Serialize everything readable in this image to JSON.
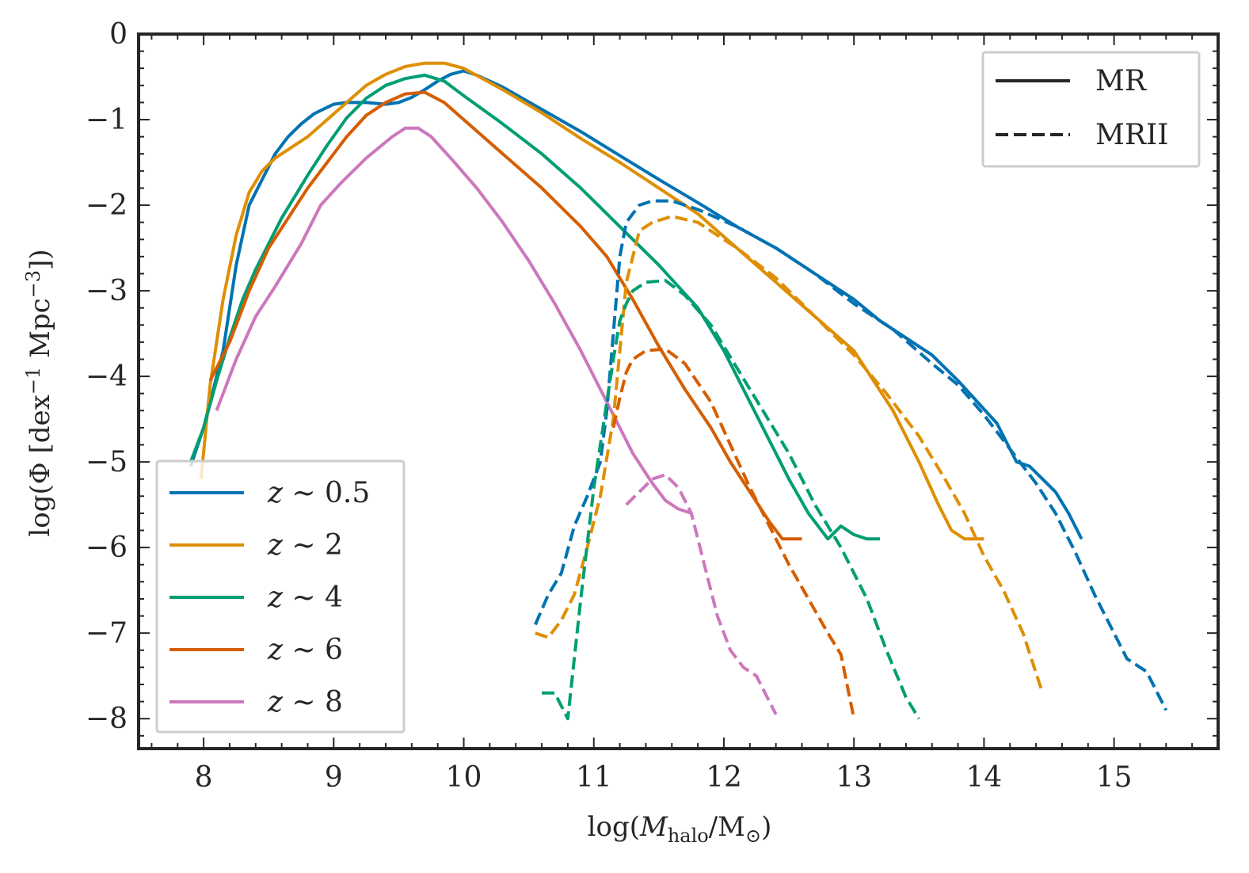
{
  "chart_data": {
    "type": "line",
    "title": "",
    "xlabel": "log(M_halo/M_⊙)",
    "ylabel": "log(Φ [dex⁻¹ Mpc⁻³])",
    "xlim": [
      7.5,
      15.8
    ],
    "ylim": [
      -8.35,
      0
    ],
    "xticks": [
      8,
      9,
      10,
      11,
      12,
      13,
      14,
      15
    ],
    "xtick_labels": [
      "8",
      "9",
      "10",
      "11",
      "12",
      "13",
      "14",
      "15"
    ],
    "yticks": [
      0,
      -1,
      -2,
      -3,
      -4,
      -5,
      -6,
      -7,
      -8
    ],
    "ytick_labels": [
      "0",
      "−1",
      "−2",
      "−3",
      "−4",
      "−5",
      "−6",
      "−7",
      "−8"
    ],
    "grid": false,
    "legend_redshift": {
      "placement": "lower-left",
      "entries": [
        {
          "label": "z ~ 0.5",
          "color": "#0173b2"
        },
        {
          "label": "z ~ 2",
          "color": "#de8f05"
        },
        {
          "label": "z ~ 4",
          "color": "#029e73"
        },
        {
          "label": "z ~ 6",
          "color": "#d55e00"
        },
        {
          "label": "z ~ 8",
          "color": "#cc78bc"
        }
      ]
    },
    "legend_style": {
      "placement": "upper-right",
      "entries": [
        {
          "label": "MR",
          "dash": "solid"
        },
        {
          "label": "MRII",
          "dash": "dashed"
        }
      ]
    },
    "series": [
      {
        "name": "z ~ 0.5",
        "simulation": "MR",
        "color": "#0173b2",
        "dash": "solid",
        "x": [
          7.9,
          8.0,
          8.1,
          8.15,
          8.25,
          8.35,
          8.45,
          8.55,
          8.65,
          8.75,
          8.85,
          9.0,
          9.1,
          9.25,
          9.4,
          9.5,
          9.6,
          9.7,
          9.8,
          9.9,
          10.0,
          10.1,
          10.3,
          10.6,
          10.9,
          11.2,
          11.5,
          11.8,
          12.1,
          12.4,
          12.7,
          13.0,
          13.2,
          13.45,
          13.6,
          13.8,
          13.95,
          14.1,
          14.2,
          14.25,
          14.35,
          14.45,
          14.55,
          14.65,
          14.75
        ],
        "y": [
          -5.05,
          -4.6,
          -4.0,
          -3.7,
          -2.7,
          -2.0,
          -1.7,
          -1.4,
          -1.2,
          -1.05,
          -0.93,
          -0.82,
          -0.8,
          -0.8,
          -0.82,
          -0.8,
          -0.74,
          -0.65,
          -0.55,
          -0.47,
          -0.43,
          -0.48,
          -0.62,
          -0.88,
          -1.14,
          -1.42,
          -1.7,
          -1.97,
          -2.25,
          -2.5,
          -2.8,
          -3.1,
          -3.35,
          -3.6,
          -3.75,
          -4.05,
          -4.3,
          -4.55,
          -4.85,
          -5.0,
          -5.05,
          -5.2,
          -5.35,
          -5.6,
          -5.9
        ]
      },
      {
        "name": "z ~ 2",
        "simulation": "MR",
        "color": "#de8f05",
        "dash": "solid",
        "x": [
          7.98,
          8.05,
          8.15,
          8.25,
          8.35,
          8.45,
          8.55,
          8.65,
          8.8,
          8.95,
          9.1,
          9.25,
          9.4,
          9.55,
          9.7,
          9.85,
          10.0,
          10.3,
          10.6,
          10.9,
          11.2,
          11.5,
          11.8,
          12.1,
          12.4,
          12.7,
          13.0,
          13.3,
          13.5,
          13.65,
          13.75,
          13.85,
          14.0
        ],
        "y": [
          -5.2,
          -4.1,
          -3.1,
          -2.35,
          -1.85,
          -1.6,
          -1.45,
          -1.35,
          -1.2,
          -1.0,
          -0.8,
          -0.6,
          -0.47,
          -0.38,
          -0.34,
          -0.34,
          -0.4,
          -0.65,
          -0.92,
          -1.22,
          -1.5,
          -1.8,
          -2.1,
          -2.5,
          -2.9,
          -3.3,
          -3.7,
          -4.4,
          -5.0,
          -5.5,
          -5.8,
          -5.9,
          -5.9
        ]
      },
      {
        "name": "z ~ 4",
        "simulation": "MR",
        "color": "#029e73",
        "dash": "solid",
        "x": [
          7.9,
          8.0,
          8.1,
          8.2,
          8.3,
          8.4,
          8.5,
          8.6,
          8.7,
          8.8,
          8.95,
          9.1,
          9.25,
          9.4,
          9.55,
          9.7,
          9.85,
          10.0,
          10.3,
          10.6,
          10.9,
          11.2,
          11.5,
          11.8,
          12.0,
          12.2,
          12.4,
          12.5,
          12.65,
          12.8,
          12.9,
          13.0,
          13.1,
          13.2
        ],
        "y": [
          -5.0,
          -4.6,
          -4.05,
          -3.55,
          -3.1,
          -2.75,
          -2.45,
          -2.15,
          -1.9,
          -1.65,
          -1.3,
          -0.98,
          -0.75,
          -0.6,
          -0.52,
          -0.48,
          -0.55,
          -0.72,
          -1.05,
          -1.4,
          -1.8,
          -2.25,
          -2.7,
          -3.2,
          -3.7,
          -4.3,
          -4.9,
          -5.2,
          -5.6,
          -5.9,
          -5.75,
          -5.85,
          -5.9,
          -5.9
        ]
      },
      {
        "name": "z ~ 6",
        "simulation": "MR",
        "color": "#d55e00",
        "dash": "solid",
        "x": [
          8.05,
          8.2,
          8.35,
          8.5,
          8.65,
          8.8,
          8.95,
          9.1,
          9.25,
          9.4,
          9.55,
          9.7,
          9.85,
          10.0,
          10.3,
          10.6,
          10.9,
          11.1,
          11.3,
          11.5,
          11.7,
          11.9,
          12.05,
          12.2,
          12.35,
          12.45,
          12.6
        ],
        "y": [
          -4.05,
          -3.6,
          -3.0,
          -2.5,
          -2.15,
          -1.8,
          -1.5,
          -1.2,
          -0.95,
          -0.8,
          -0.7,
          -0.68,
          -0.8,
          -1.0,
          -1.4,
          -1.8,
          -2.25,
          -2.6,
          -3.1,
          -3.65,
          -4.15,
          -4.6,
          -5.0,
          -5.35,
          -5.7,
          -5.9,
          -5.9
        ]
      },
      {
        "name": "z ~ 8",
        "simulation": "MR",
        "color": "#cc78bc",
        "dash": "solid",
        "x": [
          8.1,
          8.25,
          8.4,
          8.55,
          8.75,
          8.9,
          9.05,
          9.25,
          9.45,
          9.55,
          9.65,
          9.75,
          9.9,
          10.1,
          10.3,
          10.5,
          10.7,
          10.9,
          11.1,
          11.3,
          11.45,
          11.55,
          11.65,
          11.75
        ],
        "y": [
          -4.4,
          -3.8,
          -3.3,
          -2.95,
          -2.45,
          -2.0,
          -1.75,
          -1.45,
          -1.2,
          -1.1,
          -1.1,
          -1.2,
          -1.45,
          -1.8,
          -2.2,
          -2.65,
          -3.15,
          -3.7,
          -4.3,
          -4.9,
          -5.25,
          -5.45,
          -5.55,
          -5.6
        ]
      },
      {
        "name": "z ~ 0.5",
        "simulation": "MRII",
        "color": "#0173b2",
        "dash": "dashed",
        "x": [
          10.55,
          10.65,
          10.75,
          10.85,
          10.95,
          11.05,
          11.1,
          11.15,
          11.2,
          11.25,
          11.35,
          11.45,
          11.6,
          11.8,
          12.1,
          12.4,
          12.7,
          13.0,
          13.3,
          13.6,
          13.8,
          14.0,
          14.2,
          14.4,
          14.55,
          14.7,
          14.85,
          15.0,
          15.1,
          15.25,
          15.4
        ],
        "y": [
          -6.9,
          -6.55,
          -6.3,
          -5.75,
          -5.4,
          -5.0,
          -4.4,
          -3.5,
          -2.6,
          -2.2,
          -2.0,
          -1.95,
          -1.95,
          -2.05,
          -2.25,
          -2.5,
          -2.8,
          -3.15,
          -3.45,
          -3.85,
          -4.1,
          -4.45,
          -4.85,
          -5.25,
          -5.6,
          -6.05,
          -6.55,
          -7.0,
          -7.3,
          -7.45,
          -7.9
        ]
      },
      {
        "name": "z ~ 2",
        "simulation": "MRII",
        "color": "#de8f05",
        "dash": "dashed",
        "x": [
          10.55,
          10.65,
          10.75,
          10.85,
          10.95,
          11.05,
          11.15,
          11.2,
          11.25,
          11.35,
          11.45,
          11.6,
          11.8,
          12.1,
          12.4,
          12.7,
          13.0,
          13.25,
          13.5,
          13.7,
          13.85,
          14.0,
          14.15,
          14.3,
          14.45
        ],
        "y": [
          -7.0,
          -7.05,
          -6.85,
          -6.55,
          -6.0,
          -5.4,
          -4.5,
          -3.7,
          -2.9,
          -2.3,
          -2.2,
          -2.13,
          -2.2,
          -2.5,
          -2.85,
          -3.3,
          -3.75,
          -4.2,
          -4.7,
          -5.2,
          -5.6,
          -6.1,
          -6.5,
          -7.0,
          -7.7
        ]
      },
      {
        "name": "z ~ 4",
        "simulation": "MRII",
        "color": "#029e73",
        "dash": "dashed",
        "x": [
          10.6,
          10.7,
          10.8,
          10.9,
          11.0,
          11.1,
          11.15,
          11.2,
          11.25,
          11.3,
          11.4,
          11.55,
          11.7,
          11.9,
          12.1,
          12.3,
          12.5,
          12.7,
          12.9,
          13.1,
          13.25,
          13.4,
          13.5
        ],
        "y": [
          -7.7,
          -7.7,
          -8.0,
          -6.6,
          -5.3,
          -4.3,
          -3.8,
          -3.35,
          -3.15,
          -3.0,
          -2.9,
          -2.88,
          -3.05,
          -3.4,
          -3.9,
          -4.4,
          -4.9,
          -5.5,
          -6.0,
          -6.6,
          -7.2,
          -7.75,
          -8.0
        ]
      },
      {
        "name": "z ~ 6",
        "simulation": "MRII",
        "color": "#d55e00",
        "dash": "dashed",
        "x": [
          11.15,
          11.2,
          11.25,
          11.3,
          11.4,
          11.55,
          11.7,
          11.9,
          12.05,
          12.2,
          12.35,
          12.5,
          12.65,
          12.8,
          12.9,
          13.0
        ],
        "y": [
          -4.6,
          -4.25,
          -3.95,
          -3.8,
          -3.7,
          -3.68,
          -3.85,
          -4.3,
          -4.8,
          -5.3,
          -5.75,
          -6.2,
          -6.6,
          -7.0,
          -7.25,
          -8.0
        ]
      },
      {
        "name": "z ~ 8",
        "simulation": "MRII",
        "color": "#cc78bc",
        "dash": "dashed",
        "x": [
          11.25,
          11.35,
          11.45,
          11.55,
          11.65,
          11.75,
          11.85,
          11.95,
          12.05,
          12.15,
          12.25,
          12.3,
          12.35,
          12.4
        ],
        "y": [
          -5.5,
          -5.35,
          -5.2,
          -5.15,
          -5.3,
          -5.6,
          -6.2,
          -6.8,
          -7.2,
          -7.4,
          -7.5,
          -7.65,
          -7.8,
          -7.95
        ]
      }
    ]
  }
}
